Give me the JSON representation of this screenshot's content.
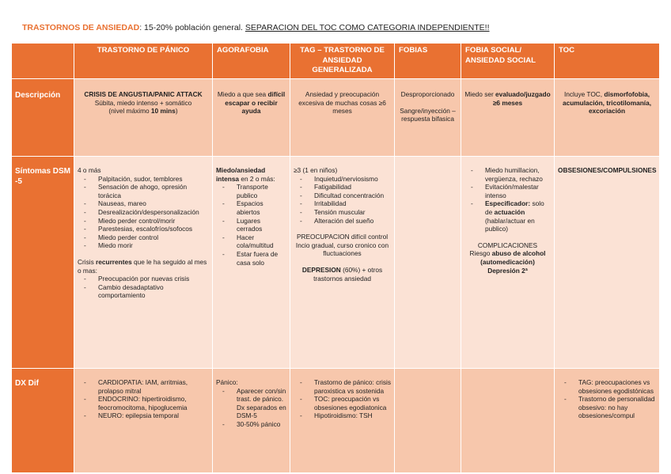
{
  "title": {
    "heading": "TRASTORNOS DE ANSIEDAD",
    "text": ": 15-20% población general. ",
    "note": "SEPARACION DEL TOC COMO CATEGORIA INDEPENDIENTE!!"
  },
  "colors": {
    "header": "#E97132",
    "row_dark": "#F7C7AC",
    "row_light": "#FBE2D5"
  },
  "columns": [
    "",
    "TRASTORNO DE PÁNICO",
    "AGORAFOBIA",
    "TAG – TRASTORNO DE ANSIEDAD GENERALIZADA",
    "FOBIAS",
    "FOBIA SOCIAL/ ANSIEDAD SOCIAL",
    "TOC"
  ],
  "rows": [
    {
      "label": "Descripción",
      "cells": [
        {
          "align": "c",
          "blocks": [
            {
              "p": [
                {
                  "b": "CRISIS DE ANGUSTIA/PANIC ATTACK"
                }
              ]
            },
            {
              "p": [
                "Súbita, miedo intenso + somático"
              ]
            },
            {
              "p": [
                "(nivel máximo ",
                {
                  "b": "10 mins"
                },
                ")"
              ]
            }
          ]
        },
        {
          "align": "c",
          "blocks": [
            {
              "p": [
                "Miedo a que sea ",
                {
                  "b": "difícil escapar o recibir ayuda"
                }
              ]
            }
          ]
        },
        {
          "align": "c",
          "blocks": [
            {
              "p": [
                "Ansiedad y preocupación excesiva de muchas cosas ≥6 meses"
              ]
            }
          ]
        },
        {
          "align": "c",
          "blocks": [
            {
              "p": [
                "Desproporcionado"
              ]
            },
            {
              "p": [
                "Sangre/inyección – respuesta bifasica"
              ],
              "gap": true
            }
          ]
        },
        {
          "align": "c",
          "blocks": [
            {
              "p": [
                "Miedo ser ",
                {
                  "b": "evaluado/juzgado ≥6 meses"
                }
              ]
            }
          ]
        },
        {
          "align": "c",
          "blocks": [
            {
              "p": [
                "Incluye TOC, ",
                {
                  "b": "dismorfofobia, acumulación, tricotilomanía, excoriación"
                }
              ]
            }
          ]
        }
      ]
    },
    {
      "label": "Síntomas DSM -5",
      "cells": [
        {
          "blocks": [
            {
              "p": [
                "4 o más"
              ]
            },
            {
              "ul": [
                [
                  "Palpitación, sudor, temblores"
                ],
                [
                  "Sensación de ahogo, opresión torácica"
                ],
                [
                  "Nauseas, mareo"
                ],
                [
                  "Desrealización/despersonalización"
                ],
                [
                  "Miedo perder control/morir"
                ],
                [
                  "Parestesias, escalofríos/sofocos"
                ],
                [
                  "Miedo perder control"
                ],
                [
                  "Miedo morir"
                ]
              ]
            },
            {
              "p": [
                "Crisis ",
                {
                  "b": "recurrentes"
                },
                " que le ha seguido al mes o mas:"
              ],
              "gap": true
            },
            {
              "ul": [
                [
                  "Preocupación por nuevas crisis"
                ],
                [
                  "Cambio desadaptativo comportamiento"
                ]
              ]
            }
          ]
        },
        {
          "blocks": [
            {
              "p": [
                {
                  "b": "Miedo/ansiedad intensa"
                },
                " en 2 o más:"
              ]
            },
            {
              "ul": [
                [
                  "Transporte publico"
                ],
                [
                  "Espacios abiertos"
                ],
                [
                  "Lugares cerrados"
                ],
                [
                  "Hacer cola/multitud"
                ],
                [
                  "Estar fuera de casa solo"
                ]
              ]
            }
          ]
        },
        {
          "blocks": [
            {
              "p": [
                "≥3 (1 en niños)"
              ]
            },
            {
              "ul": [
                [
                  "Inquietud/nerviosismo"
                ],
                [
                  "Fatigabilidad"
                ],
                [
                  "Dificultad concentración"
                ],
                [
                  "Irritabilidad"
                ],
                [
                  "Tensión muscular"
                ],
                [
                  "Alteración del sueño"
                ]
              ]
            },
            {
              "p": [
                "PREOCUPACION difícil control"
              ],
              "gap": true,
              "c": true
            },
            {
              "p": [
                "Incio gradual, curso cronico con fluctuaciones"
              ],
              "c": true
            },
            {
              "p": [
                {
                  "b": "DEPRESION"
                },
                " (60%) + otros trastornos ansiedad"
              ],
              "gap": true,
              "c": true
            }
          ]
        },
        {
          "blocks": []
        },
        {
          "blocks": [
            {
              "ul": [
                [
                  "Miedo humillacion, vergüenza, rechazo"
                ],
                [
                  "Evitación/malestar intenso"
                ],
                [
                  {
                    "b": "Especificador:"
                  },
                  " solo de ",
                  {
                    "b": "actuación"
                  },
                  " (hablar/actuar en publico)"
                ]
              ]
            },
            {
              "p": [
                "COMPLICACIONES"
              ],
              "gap": true,
              "c": true
            },
            {
              "p": [
                "Riesgo ",
                {
                  "b": "abuso de alcohol (automedicación)"
                }
              ],
              "c": true
            },
            {
              "p": [
                {
                  "b": "Depresión 2ª"
                }
              ],
              "c": true
            }
          ]
        },
        {
          "align": "c",
          "blocks": [
            {
              "p": [
                {
                  "b": "OBSESIONES/COMPULSIONES"
                }
              ]
            }
          ]
        }
      ]
    },
    {
      "label": "DX Dif",
      "cells": [
        {
          "blocks": [
            {
              "ul": [
                [
                  "CARDIOPATIA: IAM, arritmias, prolapso mitral"
                ],
                [
                  "ENDOCRINO: hipertiroidismo, feocromocitoma, hipoglucemia"
                ],
                [
                  "NEURO: epilepsia temporal"
                ]
              ]
            }
          ]
        },
        {
          "blocks": [
            {
              "p": [
                "Pánico:"
              ]
            },
            {
              "ul": [
                [
                  "Aparecer con/sin trast. de pánico. Dx separados en DSM-5"
                ],
                [
                  "30-50% pánico"
                ]
              ]
            }
          ]
        },
        {
          "blocks": [
            {
              "ul": [
                [
                  "Trastorno de pánico: crisis paroxistica vs sostenida"
                ],
                [
                  "TOC: preocupación vs obsesiones egodiatonica"
                ],
                [
                  "Hipotiroidismo: TSH"
                ]
              ]
            }
          ]
        },
        {
          "blocks": []
        },
        {
          "blocks": []
        },
        {
          "blocks": [
            {
              "ul": [
                [
                  "TAG: preocupaciones vs obsesiones egodistónicas"
                ],
                [
                  "Trastorno de personalidad obsesivo: no hay obsesiones/compul"
                ]
              ]
            }
          ]
        }
      ]
    }
  ]
}
